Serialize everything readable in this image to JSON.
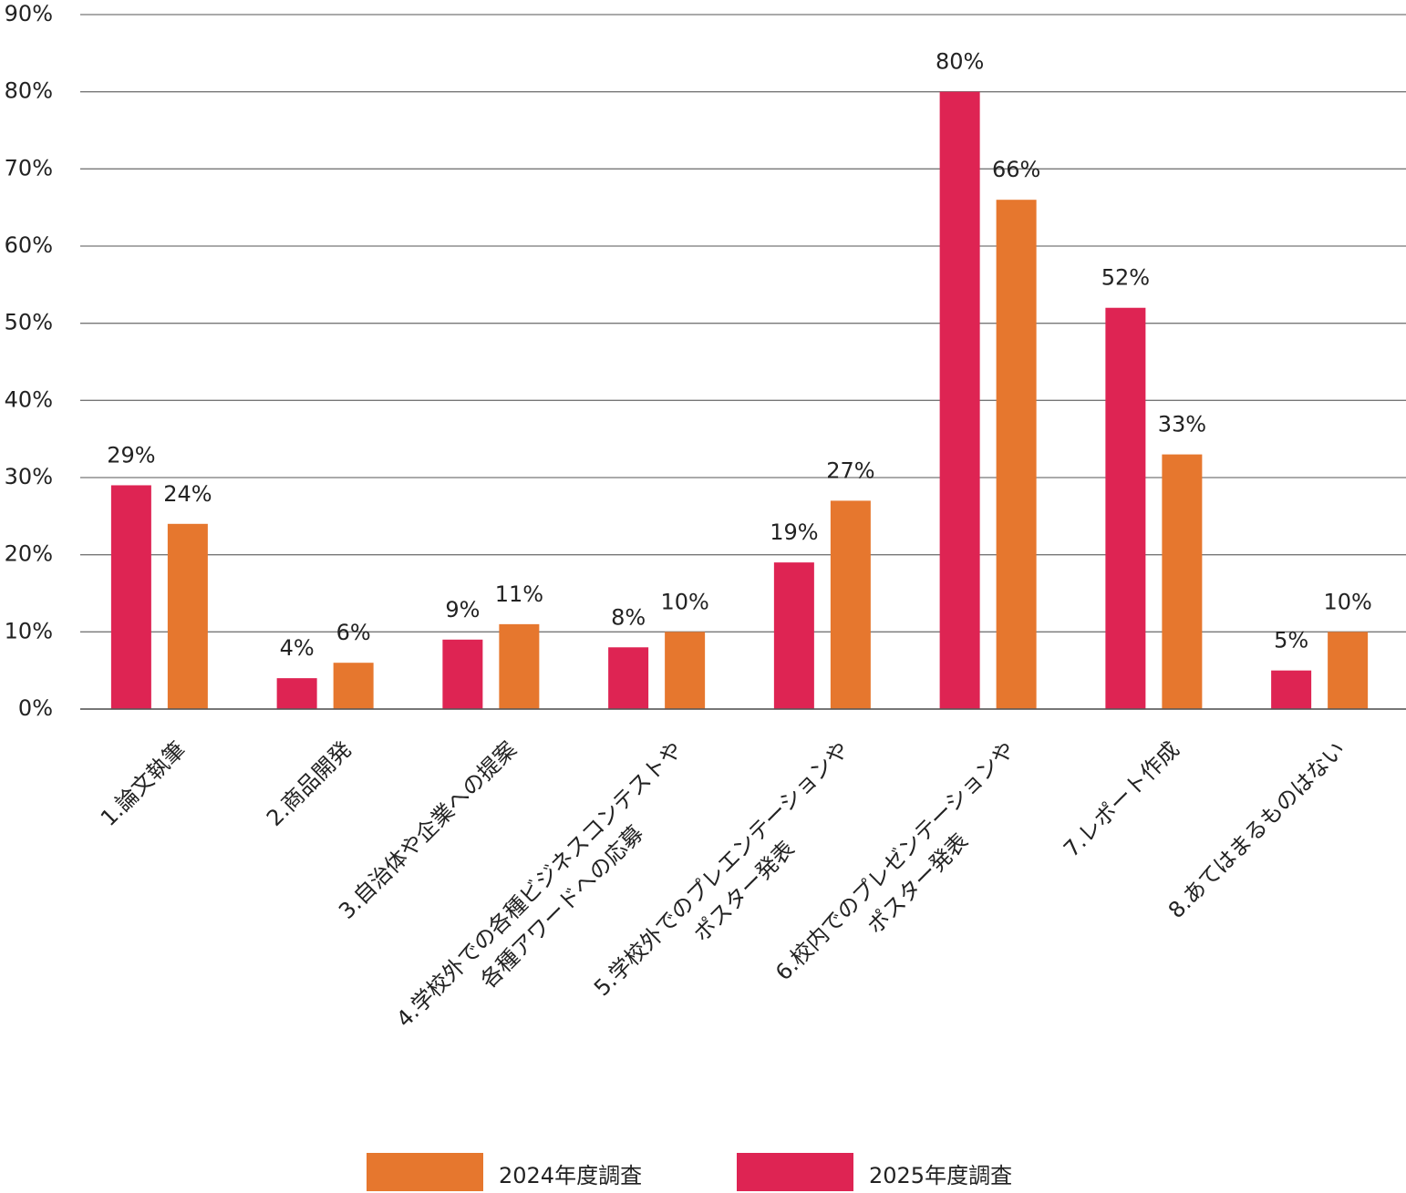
{
  "chart_data": {
    "type": "bar",
    "categories": [
      "1.論文執筆",
      "2.商品開発",
      "3.自治体や企業への提案",
      "4.学校外での各種ビジネスコンテストや\n各種アワードへの応募",
      "5.学校外でのプレエンテーションや\nポスター発表",
      "6.校内でのプレゼンテーションや\nポスター発表",
      "7.レポート作成",
      "8.あてはまるものはない"
    ],
    "series": [
      {
        "name": "2024年度調査",
        "color": "#e6772e",
        "values": [
          24,
          6,
          11,
          10,
          27,
          66,
          33,
          10
        ],
        "value_labels": [
          "24%",
          "6%",
          "11%",
          "10%",
          "27%",
          "66%",
          "33%",
          "10%"
        ]
      },
      {
        "name": "2025年度調査",
        "color": "#de2453",
        "values": [
          29,
          4,
          9,
          8,
          19,
          80,
          52,
          5
        ],
        "value_labels": [
          "29%",
          "4%",
          "9%",
          "8%",
          "19%",
          "80%",
          "52%",
          "5%"
        ]
      }
    ],
    "ylim": [
      0,
      90
    ],
    "yticks": [
      {
        "value": 0,
        "label": "0%"
      },
      {
        "value": 10,
        "label": "10%"
      },
      {
        "value": 20,
        "label": "20%"
      },
      {
        "value": 30,
        "label": "30%"
      },
      {
        "value": 40,
        "label": "40%"
      },
      {
        "value": 50,
        "label": "50%"
      },
      {
        "value": 60,
        "label": "60%"
      },
      {
        "value": 70,
        "label": "70%"
      },
      {
        "value": 80,
        "label": "80%"
      },
      {
        "value": 90,
        "label": "90%"
      }
    ],
    "grid": true
  }
}
